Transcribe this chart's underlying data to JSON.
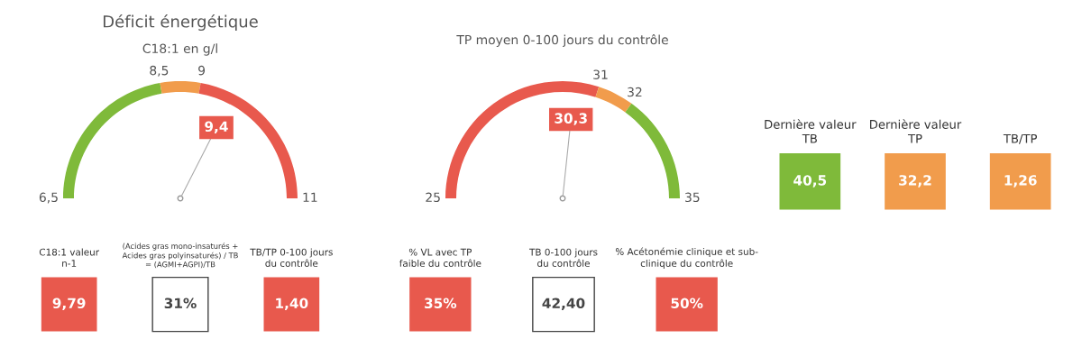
{
  "chart_data": [
    {
      "type": "donut",
      "title": "Déficit énergétique",
      "subtitle": "C18:1 en g/l",
      "categories": [
        null,
        null,
        null
      ],
      "values": [
        44.44,
        11.11,
        44.44
      ],
      "colors": [
        "#7fba3a",
        "#f19c4c",
        "#e8594d"
      ],
      "annotations": [
        "6,5",
        "8,5",
        "9",
        "11",
        "9,4"
      ]
    },
    {
      "type": "other",
      "categories": [
        "C18:1 valeur\nn-1",
        "(Acides gras mono-insaturés +\nAcides gras polyinsaturés) / TB\n= (AGMI+AGPI)/TB",
        "TB/TP 0-100 jours\ndu contrôle"
      ],
      "values": [
        9.79,
        31,
        1.4
      ],
      "value_labels": [
        "9,79",
        "31%",
        "1,40"
      ],
      "colors": [
        "#e8594d",
        "#ffffff",
        "#e8594d"
      ]
    },
    {
      "type": "donut",
      "subtitle": "TP moyen 0-100 jours du contrôle",
      "categories": [
        null,
        null,
        null
      ],
      "values": [
        60,
        10,
        30
      ],
      "colors": [
        "#e8594d",
        "#f19c4c",
        "#7fba3a"
      ],
      "annotations": [
        "25",
        "31",
        "32",
        "35",
        "30,3"
      ]
    },
    {
      "type": "other",
      "categories": [
        "% VL avec TP\nfaible du contrôle",
        "TB 0-100 jours\ndu contrôle",
        "% Acétonémie clinique et sub-\nclinique du contrôle"
      ],
      "values": [
        35,
        42.4,
        50
      ],
      "value_labels": [
        "35%",
        "42,40",
        "50%"
      ],
      "colors": [
        "#e8594d",
        "#ffffff",
        "#e8594d"
      ]
    },
    {
      "type": "other",
      "categories": [
        "Dernière valeur\nTB",
        "Dernière valeur\nTP",
        "TB/TP"
      ],
      "values": [
        40.5,
        32.2,
        1.26
      ],
      "value_labels": [
        "40,5",
        "32,2",
        "1,26"
      ],
      "colors": [
        "#7fba3a",
        "#f19c4c",
        "#f19c4c"
      ]
    }
  ]
}
